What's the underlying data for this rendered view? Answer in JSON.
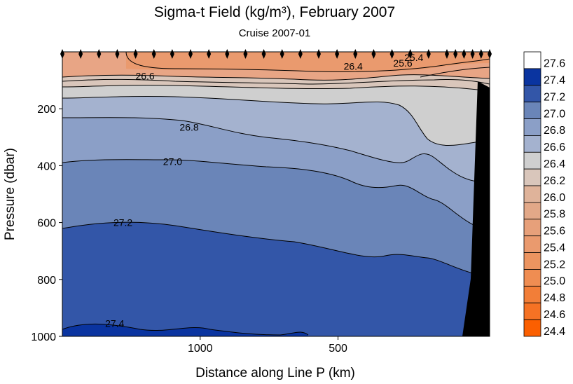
{
  "chart_data": {
    "type": "heatmap",
    "title": "Sigma-t Field  (kg/m³),  February 2007",
    "subtitle": "Cruise 2007-01",
    "xlabel": "Distance along Line P  (km)",
    "ylabel": "Pressure  (dbar)",
    "x_ticks": [
      "1000",
      "500"
    ],
    "x_tick_values": [
      1000,
      500
    ],
    "xlim": [
      1500,
      -50
    ],
    "y_ticks": [
      "200",
      "400",
      "600",
      "800",
      "1000"
    ],
    "y_tick_values": [
      200,
      400,
      600,
      800,
      1000
    ],
    "ylim": [
      0,
      1000
    ],
    "y_inverted": true,
    "colorbar": {
      "labels": [
        "27.6",
        "27.4",
        "27.2",
        "27.0",
        "26.8",
        "26.6",
        "26.4",
        "26.2",
        "26.0",
        "25.8",
        "25.6",
        "25.4",
        "25.2",
        "25.0",
        "24.8",
        "24.6",
        "24.4"
      ],
      "colors": [
        "#ffffff",
        "#0a34a0",
        "#3356a8",
        "#6a85b8",
        "#8b9fc7",
        "#a4b2cf",
        "#cfcfcf",
        "#d9c6bb",
        "#dfb39a",
        "#e2a888",
        "#e7a07a",
        "#ea9a6e",
        "#ec9460",
        "#ef8d52",
        "#f27e38",
        "#f57224",
        "#fb5f00"
      ]
    },
    "contour_labels": [
      {
        "text": "25.4",
        "x": 225,
        "y": 20
      },
      {
        "text": "25.6",
        "x": 265,
        "y": 40
      },
      {
        "text": "26.4",
        "x": 445,
        "y": 50
      },
      {
        "text": "26.6",
        "x": 1200,
        "y": 85
      },
      {
        "text": "26.8",
        "x": 1040,
        "y": 265
      },
      {
        "text": "27.0",
        "x": 1100,
        "y": 385
      },
      {
        "text": "27.2",
        "x": 1280,
        "y": 600
      },
      {
        "text": "27.4",
        "x": 1310,
        "y": 955
      }
    ],
    "station_count": 27,
    "colors": {
      "bathymetry": "#000000",
      "station_marker": "#000000",
      "contour_line": "#000000"
    }
  }
}
